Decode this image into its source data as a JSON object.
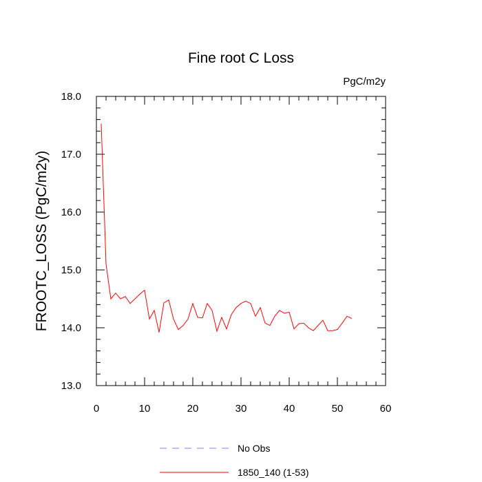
{
  "chart_data": {
    "type": "line",
    "title": "Fine root C Loss",
    "units": "PgC/m2y",
    "xlabel": "",
    "ylabel": "FROOTC_LOSS  (PgC/m2y)",
    "xlim": [
      0,
      60
    ],
    "ylim": [
      13.0,
      18.0
    ],
    "xticks": [
      0,
      10,
      20,
      30,
      40,
      50,
      60
    ],
    "xtick_labels": [
      "0",
      "10",
      "20",
      "30",
      "40",
      "50",
      "60"
    ],
    "yticks": [
      13.0,
      14.0,
      15.0,
      16.0,
      17.0,
      18.0
    ],
    "ytick_labels": [
      "13.0",
      "14.0",
      "15.0",
      "16.0",
      "17.0",
      "18.0"
    ],
    "grid": false,
    "legend_position": "bottom",
    "legend": [
      {
        "label": "No Obs",
        "style": "dashed",
        "color": "#8080ff"
      },
      {
        "label": "1850_140 (1-53)",
        "style": "solid",
        "color": "#ff0000"
      }
    ],
    "series": [
      {
        "name": "1850_140 (1-53)",
        "color": "#ff0000",
        "x": [
          1,
          2,
          3,
          4,
          5,
          6,
          7,
          8,
          9,
          10,
          11,
          12,
          13,
          14,
          15,
          16,
          17,
          18,
          19,
          20,
          21,
          22,
          23,
          24,
          25,
          26,
          27,
          28,
          29,
          30,
          31,
          32,
          33,
          34,
          35,
          36,
          37,
          38,
          39,
          40,
          41,
          42,
          43,
          44,
          45,
          46,
          47,
          48,
          49,
          50,
          51,
          52,
          53
        ],
        "y": [
          17.53,
          15.1,
          14.5,
          14.6,
          14.5,
          14.54,
          14.42,
          14.5,
          14.58,
          14.65,
          14.15,
          14.3,
          13.92,
          14.43,
          14.48,
          14.15,
          13.97,
          14.04,
          14.15,
          14.42,
          14.18,
          14.17,
          14.42,
          14.3,
          13.94,
          14.18,
          13.98,
          14.23,
          14.35,
          14.42,
          14.46,
          14.42,
          14.2,
          14.35,
          14.08,
          14.04,
          14.2,
          14.3,
          14.25,
          14.27,
          13.98,
          14.07,
          14.08,
          14.0,
          13.95,
          14.04,
          14.13,
          13.95,
          13.95,
          13.97,
          14.08,
          14.2,
          14.16
        ]
      }
    ]
  }
}
